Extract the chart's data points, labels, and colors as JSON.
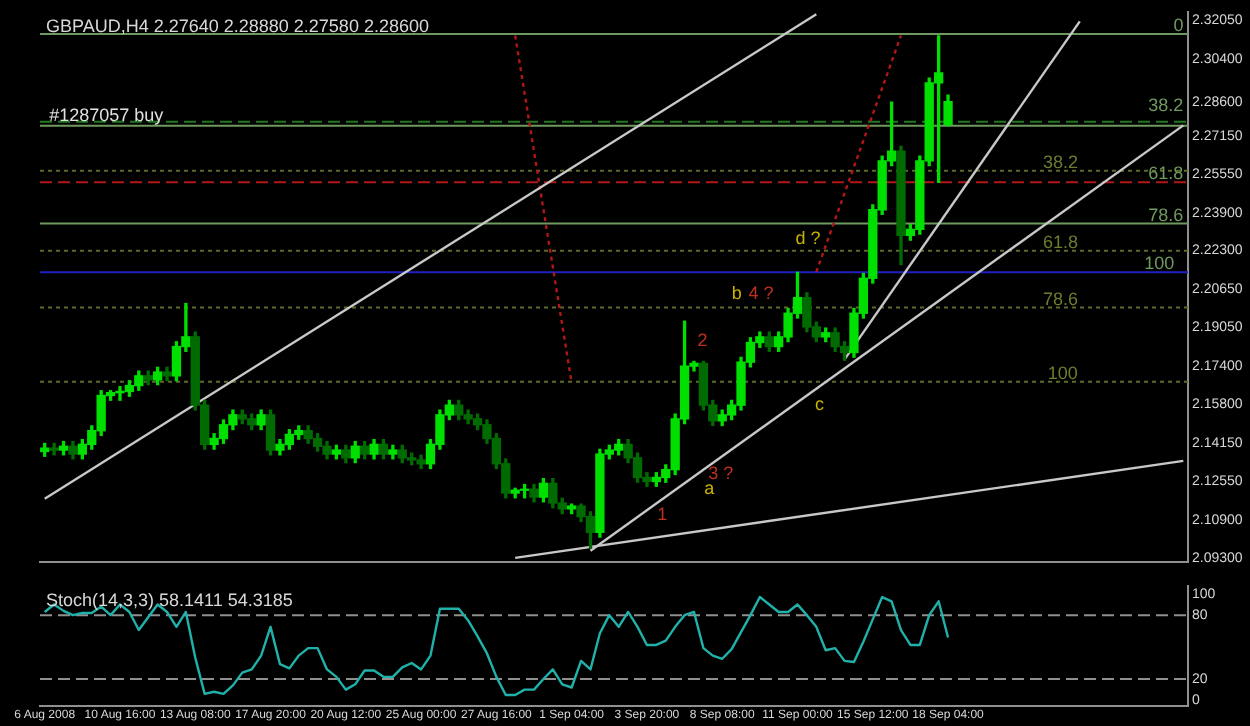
{
  "chart_data": [
    {
      "type": "candlestick",
      "title": "GBPAUD,H4 2.27640 2.28880 2.27580 2.28600",
      "colors": [
        "#00e000",
        "#006b00",
        "#00e000",
        "#006b00",
        "#00e000",
        "#00e000",
        "#00e000",
        "#00e000",
        "#00e000",
        "#00e000",
        "#00e000",
        "#006b00",
        "#00e000",
        "#006b00",
        "#00e000",
        "#00e000",
        "#006b00",
        "#006b00",
        "#00e000",
        "#00e000",
        "#00e000",
        "#006b00",
        "#006b00",
        "#00e000",
        "#006b00",
        "#00e000",
        "#00e000",
        "#00e000",
        "#006b00",
        "#006b00",
        "#006b00",
        "#00e000",
        "#006b00",
        "#00e000",
        "#006b00",
        "#00e000",
        "#006b00",
        "#00e000",
        "#006b00",
        "#006b00",
        "#006b00",
        "#00e000",
        "#00e000",
        "#00e000",
        "#006b00",
        "#006b00",
        "#006b00",
        "#006b00",
        "#006b00",
        "#006b00",
        "#00e000",
        "#00e000",
        "#006b00",
        "#00e000",
        "#006b00",
        "#006b00",
        "#00e000",
        "#006b00",
        "#006b00",
        "#00e000",
        "#00e000",
        "#00e000",
        "#006b00",
        "#006b00",
        "#006b00",
        "#00e000",
        "#00e000",
        "#00e000",
        "#00e000",
        "#00e000",
        "#006b00",
        "#006b00",
        "#00e000",
        "#00e000",
        "#00e000",
        "#00e000",
        "#00e000",
        "#006b00",
        "#00e000",
        "#00e000",
        "#00e000",
        "#006b00",
        "#006b00",
        "#00e000",
        "#006b00",
        "#006b00",
        "#00e000",
        "#00e000",
        "#00e000",
        "#00e000",
        "#00e000",
        "#006b00",
        "#00e000",
        "#00e000",
        "#00e000",
        "#00e000",
        "#00e000",
        null,
        null,
        null,
        null,
        null,
        null,
        null,
        null,
        null,
        null,
        null,
        null,
        null,
        null,
        null,
        null,
        null,
        null,
        null,
        null,
        null,
        null,
        null,
        null,
        null
      ],
      "categories": [
        null,
        null,
        null,
        null,
        null,
        null,
        null,
        null,
        null,
        null,
        null,
        null,
        null,
        null,
        null,
        null,
        null,
        null,
        null,
        null,
        null,
        null,
        null,
        null,
        null,
        null,
        null,
        null,
        null,
        null,
        null,
        null,
        null,
        null,
        null,
        null,
        null,
        null,
        null,
        null,
        null,
        null,
        null,
        null,
        null,
        null,
        null,
        null,
        null,
        null,
        null,
        null,
        null,
        null,
        null,
        null,
        null,
        null,
        null,
        null,
        null,
        null,
        null,
        null,
        null,
        null,
        null,
        null,
        null,
        null,
        null,
        null,
        null,
        null,
        null,
        null,
        null,
        null,
        null,
        null,
        null,
        null,
        null,
        null,
        null,
        null,
        null,
        null,
        null,
        null,
        null,
        null,
        null,
        null,
        null,
        null,
        null,
        null,
        null,
        null,
        null,
        null,
        null,
        null,
        null,
        null,
        null,
        null,
        null,
        null,
        null,
        null,
        null,
        null,
        null,
        null,
        null,
        null,
        null,
        null,
        null,
        null
      ],
      "ohlc": [
        [
          2.138,
          2.1414,
          2.136,
          2.1394
        ],
        [
          2.1394,
          2.1414,
          2.1366,
          2.1386
        ],
        [
          2.1386,
          2.1422,
          2.1366,
          2.1402
        ],
        [
          2.1402,
          2.1422,
          2.1349,
          2.1369
        ],
        [
          2.1369,
          2.143,
          2.1349,
          2.141
        ],
        [
          2.141,
          2.1488,
          2.139,
          2.1468
        ],
        [
          2.1468,
          2.1637,
          2.1448,
          2.1617
        ],
        [
          2.1617,
          2.1637,
          2.1597,
          2.1629
        ],
        [
          2.1629,
          2.1654,
          2.1597,
          2.1634
        ],
        [
          2.1634,
          2.1679,
          2.1614,
          2.1659
        ],
        [
          2.1659,
          2.172,
          2.1639,
          2.17
        ],
        [
          2.17,
          2.172,
          2.1663,
          2.1683
        ],
        [
          2.1683,
          2.1736,
          2.1663,
          2.1716
        ],
        [
          2.1716,
          2.1736,
          2.168,
          2.17
        ],
        [
          2.17,
          2.1844,
          2.168,
          2.1824
        ],
        [
          2.1824,
          2.2006,
          2.1804,
          2.1865
        ],
        [
          2.1865,
          2.1885,
          2.1556,
          2.1576
        ],
        [
          2.1576,
          2.1596,
          2.139,
          2.141
        ],
        [
          2.141,
          2.1455,
          2.139,
          2.1435
        ],
        [
          2.1435,
          2.1513,
          2.1415,
          2.1493
        ],
        [
          2.1493,
          2.1555,
          2.1473,
          2.1535
        ],
        [
          2.1535,
          2.1555,
          2.1498,
          2.1518
        ],
        [
          2.1518,
          2.1538,
          2.1473,
          2.1493
        ],
        [
          2.1493,
          2.1555,
          2.1473,
          2.1535
        ],
        [
          2.1535,
          2.1555,
          2.1366,
          2.1386
        ],
        [
          2.1386,
          2.143,
          2.1366,
          2.141
        ],
        [
          2.141,
          2.1472,
          2.139,
          2.1452
        ],
        [
          2.1452,
          2.1488,
          2.1432,
          2.1468
        ],
        [
          2.1468,
          2.1488,
          2.1415,
          2.1435
        ],
        [
          2.1435,
          2.1455,
          2.1382,
          2.1402
        ],
        [
          2.1402,
          2.1422,
          2.1349,
          2.1369
        ],
        [
          2.1369,
          2.1406,
          2.1349,
          2.1386
        ],
        [
          2.1386,
          2.1406,
          2.1333,
          2.1353
        ],
        [
          2.1353,
          2.1422,
          2.1333,
          2.1402
        ],
        [
          2.1402,
          2.1422,
          2.1349,
          2.1369
        ],
        [
          2.1369,
          2.143,
          2.1349,
          2.141
        ],
        [
          2.141,
          2.143,
          2.1349,
          2.1369
        ],
        [
          2.1369,
          2.1406,
          2.1349,
          2.1386
        ],
        [
          2.1386,
          2.1406,
          2.1333,
          2.1353
        ],
        [
          2.1353,
          2.1373,
          2.1324,
          2.1344
        ],
        [
          2.1344,
          2.1364,
          2.1308,
          2.1328
        ],
        [
          2.1328,
          2.143,
          2.1308,
          2.141
        ],
        [
          2.141,
          2.1555,
          2.139,
          2.1535
        ],
        [
          2.1535,
          2.1596,
          2.1515,
          2.1576
        ],
        [
          2.1576,
          2.1596,
          2.1515,
          2.1535
        ],
        [
          2.1535,
          2.1555,
          2.1498,
          2.1518
        ],
        [
          2.1518,
          2.1538,
          2.1473,
          2.1493
        ],
        [
          2.1493,
          2.1513,
          2.1415,
          2.1435
        ],
        [
          2.1435,
          2.1455,
          2.1308,
          2.1328
        ],
        [
          2.1328,
          2.1348,
          2.1184,
          2.1204
        ],
        [
          2.1204,
          2.1224,
          2.1184,
          2.1216
        ],
        [
          2.1216,
          2.124,
          2.1184,
          2.122
        ],
        [
          2.122,
          2.124,
          2.1167,
          2.1187
        ],
        [
          2.1187,
          2.1265,
          2.1167,
          2.1245
        ],
        [
          2.1245,
          2.1265,
          2.1142,
          2.1162
        ],
        [
          2.1162,
          2.1182,
          2.1117,
          2.1137
        ],
        [
          2.1137,
          2.1157,
          2.1117,
          2.1149
        ],
        [
          2.1149,
          2.1157,
          2.1084,
          2.1104
        ],
        [
          2.1104,
          2.1124,
          2.0972,
          2.1038
        ],
        [
          2.1038,
          2.1389,
          2.1018,
          2.1369
        ],
        [
          2.1369,
          2.1406,
          2.1349,
          2.1386
        ],
        [
          2.1386,
          2.143,
          2.1366,
          2.141
        ],
        [
          2.141,
          2.143,
          2.1333,
          2.1353
        ],
        [
          2.1353,
          2.1373,
          2.125,
          2.127
        ],
        [
          2.127,
          2.129,
          2.1233,
          2.1253
        ],
        [
          2.1253,
          2.129,
          2.1233,
          2.127
        ],
        [
          2.127,
          2.1323,
          2.125,
          2.1303
        ],
        [
          2.1303,
          2.1538,
          2.1283,
          2.1518
        ],
        [
          2.1518,
          2.1931,
          2.1498,
          2.1741
        ],
        [
          2.1741,
          2.1761,
          2.1721,
          2.1753
        ],
        [
          2.1753,
          2.1761,
          2.1556,
          2.1576
        ],
        [
          2.1576,
          2.1596,
          2.149,
          2.151
        ],
        [
          2.151,
          2.1555,
          2.149,
          2.1535
        ],
        [
          2.1535,
          2.1596,
          2.1515,
          2.1576
        ],
        [
          2.1576,
          2.1778,
          2.1556,
          2.1758
        ],
        [
          2.1758,
          2.1861,
          2.1738,
          2.1841
        ],
        [
          2.1841,
          2.1885,
          2.1821,
          2.1865
        ],
        [
          2.1865,
          2.1885,
          2.1804,
          2.1824
        ],
        [
          2.1824,
          2.1885,
          2.1804,
          2.1865
        ],
        [
          2.1865,
          2.1985,
          2.1845,
          2.1965
        ],
        [
          2.1965,
          2.2138,
          2.1945,
          2.2031
        ],
        [
          2.2031,
          2.2051,
          2.1887,
          2.1907
        ],
        [
          2.1907,
          2.1927,
          2.1845,
          2.1865
        ],
        [
          2.1865,
          2.1902,
          2.1845,
          2.1882
        ],
        [
          2.1882,
          2.1902,
          2.1804,
          2.1824
        ],
        [
          2.1824,
          2.1844,
          2.1766,
          2.1799
        ],
        [
          2.1799,
          2.1985,
          2.1779,
          2.1965
        ],
        [
          2.1965,
          2.2133,
          2.1945,
          2.2113
        ],
        [
          2.2113,
          2.2423,
          2.2093,
          2.2403
        ],
        [
          2.2403,
          2.263,
          2.2383,
          2.261
        ],
        [
          2.261,
          2.2858,
          2.259,
          2.2651
        ],
        [
          2.2651,
          2.2671,
          2.2171,
          2.2295
        ],
        [
          2.2295,
          2.234,
          2.2275,
          2.232
        ],
        [
          2.232,
          2.263,
          2.23,
          2.261
        ],
        [
          2.261,
          2.296,
          2.259,
          2.294
        ],
        [
          2.294,
          2.3139,
          2.2519,
          2.2982
        ],
        [
          2.2764,
          2.2888,
          2.2758,
          2.286
        ],
        null,
        null,
        null,
        null,
        null,
        null,
        null,
        null,
        null,
        null,
        null,
        null,
        null,
        null,
        null,
        null,
        null,
        null,
        null,
        null,
        null,
        null,
        null,
        null,
        null
      ],
      "series": [
        {
          "type": "line",
          "color": "#c8c8c8",
          "line_style": "solid",
          "values": [
            2.118,
            null,
            null,
            null,
            null,
            null,
            null,
            null,
            null,
            null,
            null,
            null,
            null,
            null,
            null,
            null,
            null,
            null,
            null,
            null,
            null,
            null,
            null,
            null,
            null,
            null,
            null,
            null,
            null,
            null,
            null,
            null,
            null,
            null,
            null,
            null,
            null,
            null,
            null,
            null,
            null,
            null,
            null,
            null,
            null,
            null,
            null,
            null,
            null,
            null,
            null,
            null,
            null,
            null,
            null,
            null,
            null,
            null,
            null,
            null,
            null,
            null,
            null,
            null,
            null,
            null,
            null,
            null,
            null,
            null,
            null,
            null,
            null,
            null,
            null,
            null,
            null,
            null,
            null,
            null,
            null,
            null,
            2.323,
            null,
            null,
            null,
            null,
            null,
            null,
            null,
            null,
            null,
            null,
            null,
            null,
            null,
            null,
            null,
            null,
            null,
            null,
            null,
            null,
            null,
            null,
            null,
            null,
            null,
            null,
            null,
            null,
            null,
            null,
            null,
            null,
            null,
            null,
            null,
            null,
            null,
            null,
            null
          ]
        },
        {
          "type": "line",
          "color": "#c8c8c8",
          "line_style": "solid",
          "values": [
            null,
            null,
            null,
            null,
            null,
            null,
            null,
            null,
            null,
            null,
            null,
            null,
            null,
            null,
            null,
            null,
            null,
            null,
            null,
            null,
            null,
            null,
            null,
            null,
            null,
            null,
            null,
            null,
            null,
            null,
            null,
            null,
            null,
            null,
            null,
            null,
            null,
            null,
            null,
            null,
            null,
            null,
            null,
            null,
            null,
            null,
            null,
            null,
            null,
            null,
            2.093,
            null,
            null,
            null,
            null,
            null,
            null,
            null,
            null,
            null,
            null,
            null,
            null,
            null,
            null,
            null,
            null,
            null,
            null,
            null,
            null,
            null,
            null,
            null,
            null,
            null,
            null,
            null,
            null,
            null,
            null,
            null,
            null,
            null,
            null,
            null,
            null,
            null,
            null,
            null,
            null,
            null,
            null,
            null,
            null,
            null,
            null,
            null,
            null,
            null,
            null,
            null,
            null,
            null,
            null,
            null,
            null,
            null,
            null,
            null,
            null,
            null,
            null,
            null,
            null,
            null,
            null,
            null,
            null,
            null,
            null,
            2.134
          ]
        },
        {
          "type": "line",
          "color": "#c8c8c8",
          "line_style": "solid",
          "values": [
            null,
            null,
            null,
            null,
            null,
            null,
            null,
            null,
            null,
            null,
            null,
            null,
            null,
            null,
            null,
            null,
            null,
            null,
            null,
            null,
            null,
            null,
            null,
            null,
            null,
            null,
            null,
            null,
            null,
            null,
            null,
            null,
            null,
            null,
            null,
            null,
            null,
            null,
            null,
            null,
            null,
            null,
            null,
            null,
            null,
            null,
            null,
            null,
            null,
            null,
            null,
            null,
            null,
            null,
            null,
            null,
            null,
            null,
            2.096,
            null,
            null,
            null,
            null,
            null,
            null,
            null,
            null,
            null,
            null,
            null,
            null,
            null,
            null,
            null,
            null,
            null,
            null,
            null,
            null,
            null,
            null,
            null,
            null,
            null,
            null,
            null,
            null,
            null,
            null,
            null,
            null,
            null,
            null,
            null,
            null,
            null,
            null,
            null,
            null,
            null,
            null,
            null,
            null,
            null,
            null,
            null,
            null,
            null,
            null,
            null,
            null,
            null,
            null,
            null,
            null,
            null,
            null,
            null,
            null,
            null,
            null,
            2.276
          ]
        },
        {
          "type": "line",
          "color": "#c8c8c8",
          "line_style": "solid",
          "values": [
            null,
            null,
            null,
            null,
            null,
            null,
            null,
            null,
            null,
            null,
            null,
            null,
            null,
            null,
            null,
            null,
            null,
            null,
            null,
            null,
            null,
            null,
            null,
            null,
            null,
            null,
            null,
            null,
            null,
            null,
            null,
            null,
            null,
            null,
            null,
            null,
            null,
            null,
            null,
            null,
            null,
            null,
            null,
            null,
            null,
            null,
            null,
            null,
            null,
            null,
            null,
            null,
            null,
            null,
            null,
            null,
            null,
            null,
            null,
            null,
            null,
            null,
            null,
            null,
            null,
            null,
            null,
            null,
            null,
            null,
            null,
            null,
            null,
            null,
            null,
            null,
            null,
            null,
            null,
            null,
            null,
            null,
            null,
            null,
            null,
            2.177,
            null,
            null,
            null,
            null,
            null,
            null,
            null,
            null,
            null,
            null,
            null,
            null,
            null,
            null,
            null,
            null,
            null,
            null,
            null,
            null,
            null,
            null,
            null,
            null,
            2.32,
            null,
            null,
            null,
            null,
            null,
            null,
            null,
            null,
            null,
            null,
            null
          ]
        },
        {
          "type": "line",
          "color": "#b01818",
          "line_style": "dotted",
          "values": [
            null,
            null,
            null,
            null,
            null,
            null,
            null,
            null,
            null,
            null,
            null,
            null,
            null,
            null,
            null,
            null,
            null,
            null,
            null,
            null,
            null,
            null,
            null,
            null,
            null,
            null,
            null,
            null,
            null,
            null,
            null,
            null,
            null,
            null,
            null,
            null,
            null,
            null,
            null,
            null,
            null,
            null,
            null,
            null,
            null,
            null,
            null,
            null,
            null,
            null,
            2.314,
            null,
            null,
            null,
            null,
            null,
            2.167,
            null,
            null,
            null,
            null,
            null,
            null,
            null,
            null,
            null,
            null,
            null,
            null,
            null,
            null,
            null,
            null,
            null,
            null,
            null,
            null,
            null,
            null,
            null,
            null,
            null,
            null,
            null,
            null,
            null,
            null,
            null,
            null,
            null,
            null,
            null,
            null,
            null,
            null,
            null,
            null,
            null,
            null,
            null,
            null,
            null,
            null,
            null,
            null,
            null,
            null,
            null,
            null,
            null,
            null,
            null,
            null,
            null,
            null,
            null,
            null,
            null,
            null,
            null,
            null,
            null
          ]
        },
        {
          "type": "line",
          "color": "#b01818",
          "line_style": "dotted",
          "values": [
            null,
            null,
            null,
            null,
            null,
            null,
            null,
            null,
            null,
            null,
            null,
            null,
            null,
            null,
            null,
            null,
            null,
            null,
            null,
            null,
            null,
            null,
            null,
            null,
            null,
            null,
            null,
            null,
            null,
            null,
            null,
            null,
            null,
            null,
            null,
            null,
            null,
            null,
            null,
            null,
            null,
            null,
            null,
            null,
            null,
            null,
            null,
            null,
            null,
            null,
            null,
            null,
            null,
            null,
            null,
            null,
            null,
            null,
            null,
            null,
            null,
            null,
            null,
            null,
            null,
            null,
            null,
            null,
            null,
            null,
            null,
            null,
            null,
            null,
            null,
            null,
            null,
            null,
            null,
            null,
            null,
            null,
            2.214,
            null,
            null,
            null,
            null,
            null,
            null,
            null,
            null,
            2.314,
            null,
            null,
            null,
            null,
            null,
            null,
            null,
            null,
            null,
            null,
            null,
            null,
            null,
            null,
            null,
            null,
            null,
            null,
            null,
            null,
            null,
            null,
            null,
            null,
            null,
            null,
            null,
            null,
            null,
            null
          ]
        }
      ],
      "ylim": [
        2.0914,
        2.3238
      ],
      "yticks": [
        {
          "value": 2.093,
          "label": "2.09300"
        },
        {
          "value": 2.109,
          "label": "2.10900"
        },
        {
          "value": 2.1255,
          "label": "2.12550"
        },
        {
          "value": 2.1415,
          "label": "2.14150"
        },
        {
          "value": 2.158,
          "label": "2.15800"
        },
        {
          "value": 2.174,
          "label": "2.17400"
        },
        {
          "value": 2.1905,
          "label": "2.19050"
        },
        {
          "value": 2.2065,
          "label": "2.20650"
        },
        {
          "value": 2.223,
          "label": "2.22300"
        },
        {
          "value": 2.239,
          "label": "2.23900"
        },
        {
          "value": 2.2555,
          "label": "2.25550"
        },
        {
          "value": 2.2715,
          "label": "2.27150"
        },
        {
          "value": 2.286,
          "label": "2.28600"
        },
        {
          "value": 2.304,
          "label": "2.30400"
        },
        {
          "value": 2.3205,
          "label": "2.32050"
        }
      ],
      "tick_labels": "y",
      "ref_lines": [
        {
          "axis": "y",
          "value": 2.2775,
          "color": "#1f7a1f",
          "line_style": "dashed"
        },
        {
          "axis": "y",
          "value": 2.2519,
          "color": "#b01818",
          "line_style": "dashed"
        },
        {
          "axis": "y",
          "value": 2.2138,
          "color": "#2020c0",
          "line_style": "solid"
        },
        {
          "axis": "y",
          "value": 2.3147,
          "color": "#6f9a5f",
          "line_style": "solid"
        },
        {
          "axis": "y",
          "value": 2.2758,
          "color": "#6f9a5f",
          "line_style": "solid"
        },
        {
          "axis": "y",
          "value": 2.2345,
          "color": "#6f9a5f",
          "line_style": "solid"
        },
        {
          "axis": "y",
          "value": 2.2568,
          "color": "#5c6b2a",
          "line_style": "dotted"
        },
        {
          "axis": "y",
          "value": 2.2229,
          "color": "#5c6b2a",
          "line_style": "dotted"
        },
        {
          "axis": "y",
          "value": 2.1989,
          "color": "#5c6b2a",
          "line_style": "dotted"
        },
        {
          "axis": "y",
          "value": 2.1675,
          "color": "#5c6b2a",
          "line_style": "dotted"
        }
      ],
      "annotations": [
        "#1287057 buy",
        "0",
        "38.2",
        "61.8",
        "78.6",
        "100",
        "38.2",
        "61.8",
        "78.6",
        "100",
        "1",
        "a",
        "3 ?",
        "2",
        "b",
        "4 ?",
        "c",
        "d ?"
      ]
    },
    {
      "type": "line",
      "title": "Stoch(14,3,3) 58.1411 54.3185",
      "color": "#20b2aa",
      "categories": [
        "6 Aug 2008",
        null,
        null,
        null,
        null,
        null,
        null,
        null,
        "10 Aug 16:00",
        null,
        null,
        null,
        null,
        null,
        null,
        null,
        "13 Aug 08:00",
        null,
        null,
        null,
        null,
        null,
        null,
        null,
        "17 Aug 20:00",
        null,
        null,
        null,
        null,
        null,
        null,
        null,
        "20 Aug 12:00",
        null,
        null,
        null,
        null,
        null,
        null,
        null,
        "25 Aug 00:00",
        null,
        null,
        null,
        null,
        null,
        null,
        null,
        "27 Aug 16:00",
        null,
        null,
        null,
        null,
        null,
        null,
        null,
        "1 Sep 04:00",
        null,
        null,
        null,
        null,
        null,
        null,
        null,
        "3 Sep 20:00",
        null,
        null,
        null,
        null,
        null,
        null,
        null,
        "8 Sep 08:00",
        null,
        null,
        null,
        null,
        null,
        null,
        null,
        "11 Sep 00:00",
        null,
        null,
        null,
        null,
        null,
        null,
        null,
        "15 Sep 12:00",
        null,
        null,
        null,
        null,
        null,
        null,
        null,
        "18 Sep 04:00",
        null,
        null,
        null,
        null,
        null,
        null,
        null,
        null,
        null,
        null,
        null,
        null,
        null,
        null,
        null,
        null,
        null,
        null,
        null,
        null,
        null,
        null,
        null,
        null,
        null
      ],
      "values": [
        83,
        90,
        84,
        80,
        82,
        82,
        88,
        80,
        90,
        83,
        66,
        78,
        90,
        83,
        69,
        83,
        40,
        6,
        8,
        6,
        14,
        26,
        29,
        42,
        69,
        34,
        30,
        42,
        49,
        49,
        29,
        22,
        10,
        15,
        28,
        28,
        22,
        22,
        31,
        35,
        29,
        42,
        86,
        86,
        86,
        75,
        60,
        44,
        22,
        5,
        5,
        10,
        10,
        20,
        29,
        15,
        12,
        37,
        29,
        63,
        80,
        69,
        83,
        69,
        52,
        52,
        56,
        69,
        80,
        83,
        49,
        42,
        39,
        48,
        64,
        80,
        97,
        90,
        83,
        83,
        90,
        80,
        69,
        47,
        49,
        37,
        36,
        55,
        76,
        97,
        93,
        66,
        52,
        52,
        80,
        93,
        59,
        null,
        null,
        null,
        null,
        null,
        null,
        null,
        null,
        null,
        null,
        null,
        null,
        null,
        null,
        null,
        null,
        null,
        null,
        null,
        null,
        null,
        null,
        null,
        null,
        null
      ],
      "ylim": [
        -5,
        107
      ],
      "yticks": [
        0,
        20,
        80,
        100
      ],
      "ref_lines": [
        {
          "axis": "y",
          "value": 80,
          "color": "#909090",
          "line_style": "dashed"
        },
        {
          "axis": "y",
          "value": 20,
          "color": "#909090",
          "line_style": "dashed"
        }
      ]
    }
  ]
}
